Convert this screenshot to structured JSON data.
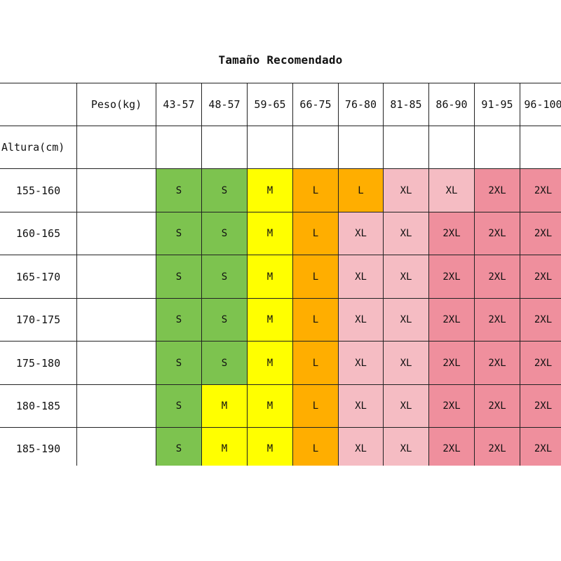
{
  "title": "Tamaño Recomendado",
  "header": {
    "peso_label": "Peso(kg)",
    "altura_label": "Altura(cm)",
    "weight_ranges": [
      "43-57",
      "48-57",
      "59-65",
      "66-75",
      "76-80",
      "81-85",
      "86-90",
      "91-95",
      "96-100"
    ]
  },
  "colors": {
    "S": "#7dc34f",
    "M": "#ffff00",
    "L": "#ffae00",
    "XL": "#f5bcc3",
    "2XL": "#ef8f9d"
  },
  "rows": [
    {
      "height": "155-160",
      "sizes": [
        "S",
        "S",
        "M",
        "L",
        "L",
        "XL",
        "XL",
        "2XL",
        "2XL"
      ]
    },
    {
      "height": "160-165",
      "sizes": [
        "S",
        "S",
        "M",
        "L",
        "XL",
        "XL",
        "2XL",
        "2XL",
        "2XL"
      ]
    },
    {
      "height": "165-170",
      "sizes": [
        "S",
        "S",
        "M",
        "L",
        "XL",
        "XL",
        "2XL",
        "2XL",
        "2XL"
      ]
    },
    {
      "height": "170-175",
      "sizes": [
        "S",
        "S",
        "M",
        "L",
        "XL",
        "XL",
        "2XL",
        "2XL",
        "2XL"
      ]
    },
    {
      "height": "175-180",
      "sizes": [
        "S",
        "S",
        "M",
        "L",
        "XL",
        "XL",
        "2XL",
        "2XL",
        "2XL"
      ]
    },
    {
      "height": "180-185",
      "sizes": [
        "S",
        "M",
        "M",
        "L",
        "XL",
        "XL",
        "2XL",
        "2XL",
        "2XL"
      ]
    },
    {
      "height": "185-190",
      "sizes": [
        "S",
        "M",
        "M",
        "L",
        "XL",
        "XL",
        "2XL",
        "2XL",
        "2XL"
      ]
    }
  ]
}
